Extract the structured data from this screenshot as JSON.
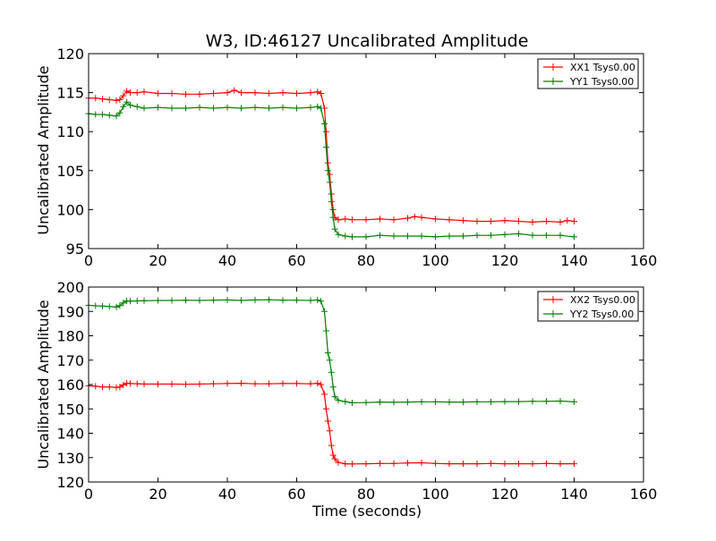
{
  "title": "W3, ID:46127 Uncalibrated Amplitude",
  "colors": {
    "xx": "#ff0000",
    "yy": "#008000"
  },
  "chart_data": [
    {
      "type": "line",
      "xlabel": "",
      "ylabel": "Uncalibrated Amplitude",
      "xlim": [
        0,
        160
      ],
      "ylim": [
        95,
        120
      ],
      "xticks": [
        "0",
        "20",
        "40",
        "60",
        "80",
        "100",
        "120",
        "140",
        "160"
      ],
      "yticks": [
        "95",
        "100",
        "105",
        "110",
        "115",
        "120"
      ],
      "legend_position": "top-right",
      "series": [
        {
          "name": "XX1 Tsys0.00",
          "color": "#ff0000",
          "marker": "+",
          "x": [
            0,
            2,
            4,
            6,
            8,
            9,
            10,
            11,
            12,
            14,
            16,
            20,
            24,
            28,
            32,
            36,
            40,
            42,
            44,
            48,
            52,
            56,
            60,
            64,
            66,
            67,
            68,
            68.5,
            69,
            69.5,
            70,
            70.5,
            71,
            72,
            74,
            76,
            80,
            84,
            88,
            92,
            94,
            96,
            100,
            104,
            108,
            112,
            116,
            120,
            124,
            128,
            132,
            136,
            138,
            140
          ],
          "y": [
            114.3,
            114.3,
            114.2,
            114.1,
            114.0,
            114.1,
            114.6,
            115.2,
            115.0,
            115.0,
            115.1,
            114.9,
            114.9,
            114.8,
            114.8,
            114.9,
            115.0,
            115.3,
            115.0,
            115.0,
            114.9,
            115.0,
            114.9,
            115.0,
            115.1,
            114.9,
            113.0,
            110.0,
            106.0,
            104.5,
            102.0,
            100.0,
            99.0,
            98.7,
            98.8,
            98.7,
            98.7,
            98.8,
            98.7,
            98.9,
            99.1,
            99.0,
            98.8,
            98.7,
            98.6,
            98.5,
            98.5,
            98.6,
            98.5,
            98.4,
            98.5,
            98.4,
            98.6,
            98.5
          ]
        },
        {
          "name": "YY1 Tsys0.00",
          "color": "#008000",
          "marker": "+",
          "x": [
            0,
            2,
            4,
            6,
            8,
            9,
            10,
            11,
            12,
            14,
            16,
            20,
            24,
            28,
            32,
            36,
            40,
            44,
            48,
            52,
            56,
            60,
            64,
            66,
            67,
            68,
            68.5,
            69,
            69.5,
            70,
            70.5,
            71,
            72,
            74,
            76,
            80,
            84,
            88,
            92,
            96,
            100,
            104,
            108,
            112,
            116,
            120,
            124,
            128,
            132,
            136,
            140
          ],
          "y": [
            112.3,
            112.2,
            112.2,
            112.1,
            112.0,
            112.4,
            113.2,
            113.8,
            113.4,
            113.2,
            113.0,
            113.1,
            113.0,
            113.0,
            113.1,
            113.0,
            113.1,
            113.0,
            113.1,
            113.0,
            113.1,
            113.0,
            113.1,
            113.2,
            113.0,
            111.0,
            108.0,
            105.0,
            103.5,
            101.0,
            99.0,
            97.5,
            96.8,
            96.6,
            96.5,
            96.5,
            96.7,
            96.6,
            96.6,
            96.6,
            96.5,
            96.6,
            96.6,
            96.7,
            96.7,
            96.8,
            96.9,
            96.7,
            96.7,
            96.7,
            96.5
          ]
        }
      ]
    },
    {
      "type": "line",
      "xlabel": "Time (seconds)",
      "ylabel": "Uncalibrated Amplitude",
      "xlim": [
        0,
        160
      ],
      "ylim": [
        120,
        200
      ],
      "xticks": [
        "0",
        "20",
        "40",
        "60",
        "80",
        "100",
        "120",
        "140",
        "160"
      ],
      "yticks": [
        "120",
        "130",
        "140",
        "150",
        "160",
        "170",
        "180",
        "190",
        "200"
      ],
      "legend_position": "top-right",
      "series": [
        {
          "name": "XX2 Tsys0.00",
          "color": "#ff0000",
          "marker": "+",
          "x": [
            0,
            2,
            4,
            6,
            8,
            9,
            10,
            11,
            12,
            14,
            16,
            20,
            24,
            28,
            32,
            36,
            40,
            44,
            48,
            52,
            56,
            60,
            64,
            66,
            67,
            68,
            68.5,
            69,
            69.5,
            70,
            70.5,
            71,
            72,
            74,
            76,
            80,
            84,
            88,
            92,
            96,
            100,
            104,
            108,
            112,
            116,
            120,
            124,
            128,
            132,
            136,
            140
          ],
          "y": [
            159.5,
            159.3,
            159.0,
            159.0,
            158.8,
            159.0,
            159.8,
            160.5,
            160.4,
            160.3,
            160.2,
            160.2,
            160.2,
            160.1,
            160.2,
            160.3,
            160.4,
            160.5,
            160.3,
            160.3,
            160.4,
            160.4,
            160.3,
            160.5,
            160.0,
            156.0,
            150.0,
            145.0,
            141.0,
            135.0,
            131.0,
            129.5,
            128.0,
            127.5,
            127.4,
            127.5,
            127.6,
            127.6,
            127.8,
            127.9,
            127.6,
            127.5,
            127.5,
            127.5,
            127.6,
            127.5,
            127.5,
            127.5,
            127.6,
            127.5,
            127.5
          ]
        },
        {
          "name": "YY2 Tsys0.00",
          "color": "#008000",
          "marker": "+",
          "x": [
            0,
            2,
            4,
            6,
            8,
            9,
            10,
            11,
            12,
            14,
            16,
            20,
            24,
            28,
            32,
            36,
            40,
            44,
            48,
            52,
            56,
            60,
            64,
            66,
            67,
            68,
            68.5,
            69,
            69.5,
            70,
            70.5,
            71,
            72,
            74,
            76,
            80,
            84,
            88,
            92,
            96,
            100,
            104,
            108,
            112,
            116,
            120,
            124,
            128,
            132,
            136,
            140
          ],
          "y": [
            192.5,
            192.3,
            192.2,
            192.0,
            191.8,
            192.4,
            193.5,
            194.3,
            194.2,
            194.3,
            194.4,
            194.5,
            194.5,
            194.6,
            194.5,
            194.6,
            194.7,
            194.5,
            194.7,
            194.8,
            194.6,
            194.6,
            194.5,
            194.7,
            194.2,
            190.0,
            182.0,
            173.0,
            170.0,
            165.0,
            159.0,
            155.0,
            153.5,
            153.0,
            152.5,
            152.6,
            152.8,
            152.7,
            152.8,
            152.9,
            152.9,
            152.8,
            152.8,
            152.9,
            152.9,
            153.0,
            153.0,
            153.1,
            153.1,
            153.2,
            152.9
          ]
        }
      ]
    }
  ]
}
